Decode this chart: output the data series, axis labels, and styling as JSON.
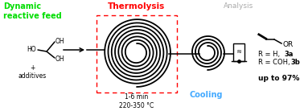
{
  "label_dynamic": "Dynamic\nreactive feed",
  "label_thermolysis": "Thermolysis",
  "label_cooling": "Cooling",
  "label_analysis": "Analysis",
  "label_time_temp": "1-6 min\n220-350 °C",
  "label_r_h": "R = H, ",
  "label_r_h_bold": "3a",
  "label_r_coh": "R = COH, ",
  "label_r_coh_bold": "3b",
  "label_yield": "up to 97%",
  "label_plus": "+\nadditives",
  "label_or": "OR",
  "color_dynamic": "#00dd00",
  "color_thermolysis": "#ff0000",
  "color_cooling": "#44aaff",
  "color_analysis": "#aaaaaa",
  "color_black": "#000000",
  "color_bg": "#ffffff",
  "fig_width": 3.78,
  "fig_height": 1.38,
  "dpi": 100
}
